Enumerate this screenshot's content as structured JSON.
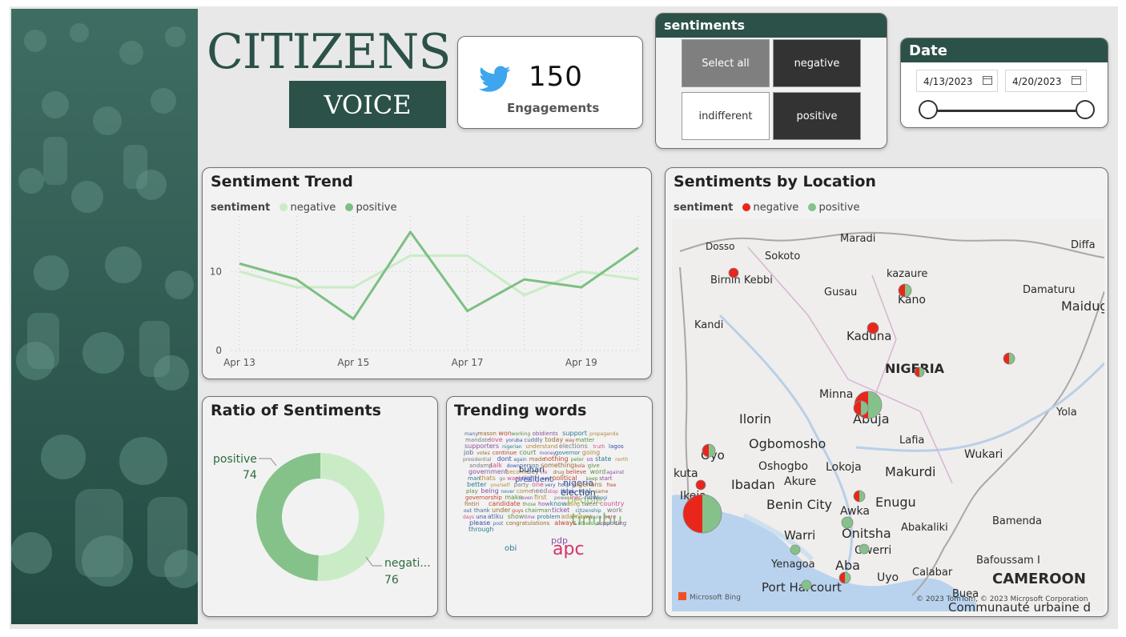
{
  "header": {
    "title": "CITIZENS",
    "subtitle": "VOICE"
  },
  "engagements": {
    "count": "150",
    "label": "Engagements"
  },
  "sentiment_slicer": {
    "title": "sentiments",
    "options": [
      "Select all",
      "negative",
      "indifferent",
      "positive"
    ]
  },
  "date_slicer": {
    "title": "Date",
    "start": "4/13/2023",
    "end": "4/20/2023"
  },
  "trend": {
    "title": "Sentiment Trend",
    "legend_title": "sentiment",
    "legend": [
      "negative",
      "positive"
    ],
    "colors": {
      "negative": "#c9ecc6",
      "positive": "#7dbf83"
    }
  },
  "ratio": {
    "title": "Ratio of Sentiments",
    "positive_label": "positive",
    "positive_value": "74",
    "negative_label": "negati...",
    "negative_value": "76"
  },
  "words": {
    "title": "Trending words",
    "items": [
      "many",
      "reason",
      "won",
      "working",
      "obidients",
      "support",
      "propaganda",
      "mandate",
      "love",
      "yoruba",
      "cuddly",
      "today",
      "way",
      "matter",
      "supporters",
      "nigerian",
      "understand",
      "elections",
      "truth",
      "lagos",
      "job",
      "votes",
      "continue",
      "court",
      "money",
      "governor",
      "going",
      "presidential",
      "president",
      "dont",
      "again",
      "made",
      "nothing",
      "peter",
      "us",
      "state",
      "north",
      "andamp",
      "talk",
      "down",
      "person",
      "something",
      "bola",
      "give",
      "government",
      "nigeria",
      "become",
      "dey",
      "life",
      "buhari",
      "election",
      "drug",
      "believe",
      "word",
      "against",
      "man",
      "thats",
      "go",
      "want",
      "right",
      "see",
      "people",
      "political",
      "keep",
      "start",
      "better",
      "yourself",
      "party",
      "one",
      "very",
      "help",
      "nigerians",
      "free",
      "play",
      "being",
      "never",
      "come",
      "need",
      "stop",
      "think",
      "real",
      "same",
      "governorship",
      "make",
      "even",
      "tinubu",
      "first",
      "power",
      "inec",
      "now",
      "kogi",
      "fintiri",
      "candidate",
      "those",
      "how",
      "know",
      "doing",
      "tweet",
      "country",
      "out",
      "thank",
      "under",
      "guys",
      "chairman",
      "ticket",
      "citizenship",
      "pdp",
      "work",
      "days",
      "una",
      "atiku",
      "obi",
      "apc",
      "show",
      "time",
      "problem",
      "adamawa",
      "youre",
      "here",
      "please",
      "post",
      "congratulations",
      "always",
      "others",
      "supporting",
      "through"
    ]
  },
  "location": {
    "title": "Sentiments by Location",
    "legend_title": "sentiment",
    "legend": [
      "negative",
      "positive"
    ],
    "colors": {
      "negative": "#e8261c",
      "positive": "#85c28a"
    },
    "places": [
      "Dosso",
      "Maradi",
      "Diffa",
      "Sokoto",
      "Birnin Kebbi",
      "kazaure",
      "Gusau",
      "Kano",
      "Damaturu",
      "Maidug",
      "Kandi",
      "Kaduna",
      "NIGERIA",
      "Minna",
      "Abuja",
      "Yola",
      "Ilorin",
      "Ogbomosho",
      "Oyo",
      "Lafia",
      "Wukari",
      "Oshogbo",
      "Lokoja",
      "kuta",
      "Ibadan",
      "Akure",
      "Makurdi",
      "Ikeja",
      "Benin City",
      "Awka",
      "Enugu",
      "Bamenda",
      "Warri",
      "Onitsha",
      "Abakaliki",
      "Owerri",
      "Bafoussam I",
      "Yenagoa",
      "Aba",
      "Uyo",
      "Calabar",
      "CAMEROON",
      "Port Harcourt",
      "Buea",
      "Communauté urbaine d"
    ],
    "attribution_left": "Microsoft Bing",
    "attribution_right": "© 2023 TomTom, © 2023 Microsoft Corporation"
  },
  "chart_data": [
    {
      "type": "line",
      "title": "Sentiment Trend",
      "categories": [
        "Apr 13",
        "Apr 14",
        "Apr 15",
        "Apr 16",
        "Apr 17",
        "Apr 18",
        "Apr 19",
        "Apr 20"
      ],
      "x_tick_labels": [
        "Apr 13",
        "Apr 15",
        "Apr 17",
        "Apr 19"
      ],
      "y_ticks": [
        "0",
        "10"
      ],
      "ylim": [
        0,
        16
      ],
      "series": [
        {
          "name": "negative",
          "values": [
            10,
            8,
            8,
            12,
            12,
            7,
            10,
            9
          ]
        },
        {
          "name": "positive",
          "values": [
            11,
            9,
            4,
            15,
            5,
            9,
            8,
            13
          ]
        }
      ]
    },
    {
      "type": "pie",
      "title": "Ratio of Sentiments",
      "labels": [
        "positive",
        "negative"
      ],
      "values": [
        74,
        76
      ]
    }
  ]
}
